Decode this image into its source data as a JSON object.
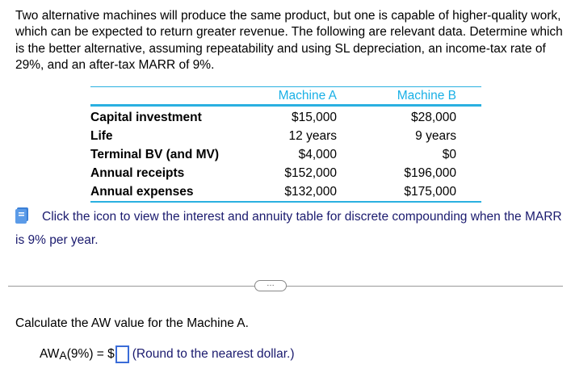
{
  "problem_text": "Two alternative machines will produce the same product, but one is capable of higher-quality work, which can be expected to return greater revenue. The following are relevant data. Determine which is the better alternative, assuming repeatability and using SL depreciation, an income-tax rate of 29%, and an after-tax MARR of 9%.",
  "table": {
    "headers": [
      "",
      "Machine A",
      "Machine B"
    ],
    "rows": [
      {
        "label": "Capital investment",
        "a": "$15,000",
        "b": "$28,000"
      },
      {
        "label": "Life",
        "a": "12 years",
        "b": "9 years"
      },
      {
        "label": "Terminal BV (and MV)",
        "a": "$4,000",
        "b": "$0"
      },
      {
        "label": "Annual receipts",
        "a": "$152,000",
        "b": "$196,000"
      },
      {
        "label": "Annual expenses",
        "a": "$132,000",
        "b": "$175,000"
      }
    ]
  },
  "table_note": "Click the icon to view the interest and annuity table for discrete compounding when the MARR is 9% per year.",
  "more_button": "…",
  "question": "Calculate the AW value for the Machine A.",
  "answer": {
    "prefix": "AW",
    "subscript": "A",
    "suffix": "(9%) = $",
    "value": "",
    "hint": "(Round to the nearest dollar.)"
  },
  "colors": {
    "accent": "#2ab0e0",
    "link_text": "#1a1a6e",
    "input_border": "#3a6cd8"
  },
  "icons": {
    "table_icon": "book-icon"
  }
}
